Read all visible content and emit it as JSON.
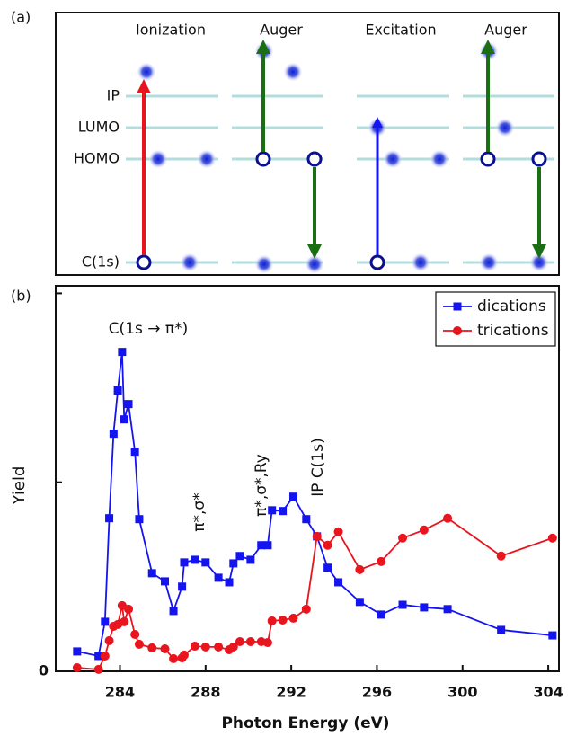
{
  "diagram": {
    "label": "(a)",
    "headers": [
      "Ionization",
      "Auger",
      "Excitation",
      "Auger"
    ],
    "levels": [
      "IP",
      "LUMO",
      "HOMO",
      "C(1s)"
    ]
  },
  "chart_data": {
    "type": "line",
    "panel_label": "(b)",
    "xlabel": "Photon Energy (eV)",
    "ylabel": "Yield",
    "annotations": [
      "C(1s → π*)",
      "π*,σ*",
      "π*,σ*,Ry",
      "IP C(1s)"
    ],
    "x": [
      282.0,
      283.0,
      283.3,
      283.5,
      283.7,
      283.9,
      284.1,
      284.2,
      284.4,
      284.7,
      284.9,
      285.5,
      286.1,
      286.5,
      286.9,
      287.0,
      287.5,
      288.0,
      288.6,
      289.1,
      289.3,
      289.6,
      290.1,
      290.6,
      290.9,
      291.1,
      291.6,
      292.1,
      292.7,
      293.2,
      293.7,
      294.2,
      295.2,
      296.2,
      297.2,
      298.2,
      299.3,
      301.8,
      304.2
    ],
    "series": [
      {
        "name": "dications",
        "color": "#1414f0",
        "marker": "square",
        "values": [
          0.105,
          0.081,
          0.262,
          0.81,
          1.257,
          1.486,
          1.69,
          1.333,
          1.414,
          1.162,
          0.805,
          0.519,
          0.476,
          0.319,
          0.448,
          0.576,
          0.59,
          0.576,
          0.495,
          0.471,
          0.571,
          0.61,
          0.59,
          0.667,
          0.667,
          0.852,
          0.848,
          0.924,
          0.805,
          0.714,
          0.548,
          0.471,
          0.367,
          0.3,
          0.352,
          0.338,
          0.329,
          0.219,
          0.19
        ]
      },
      {
        "name": "trications",
        "color": "#e8141e",
        "marker": "circle",
        "values": [
          0.019,
          0.01,
          0.081,
          0.162,
          0.238,
          0.248,
          0.348,
          0.262,
          0.329,
          0.195,
          0.143,
          0.124,
          0.119,
          0.067,
          0.071,
          0.086,
          0.133,
          0.129,
          0.129,
          0.114,
          0.129,
          0.157,
          0.157,
          0.157,
          0.152,
          0.267,
          0.271,
          0.281,
          0.329,
          0.714,
          0.667,
          0.738,
          0.538,
          0.581,
          0.705,
          0.748,
          0.81,
          0.61,
          0.705
        ]
      }
    ],
    "xlim": [
      281,
      304.5
    ],
    "xticks": [
      284,
      288,
      292,
      296,
      300,
      304
    ],
    "ylim": [
      0,
      2.04
    ],
    "yticks": [
      0
    ],
    "ytick_marks": [
      0,
      1,
      2
    ],
    "legend": "upper right"
  }
}
